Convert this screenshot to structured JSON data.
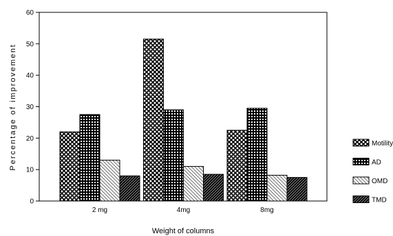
{
  "chart_data": {
    "type": "bar",
    "xlabel": "Weight of columns",
    "ylabel": "Percentage of improvement",
    "ylim": [
      0,
      60
    ],
    "yticks": [
      0,
      10,
      20,
      30,
      40,
      50,
      60
    ],
    "categories": [
      "2 mg",
      "4mg",
      "8mg"
    ],
    "series": [
      {
        "name": "Motility",
        "pattern": "crosshatch-diagonal",
        "values": [
          22,
          51.5,
          22.5
        ]
      },
      {
        "name": "AD",
        "pattern": "grid-dense",
        "values": [
          27.5,
          29,
          29.5
        ]
      },
      {
        "name": "OMD",
        "pattern": "hatch-light",
        "values": [
          13,
          11,
          8.2
        ]
      },
      {
        "name": "TMD",
        "pattern": "hatch-dark",
        "values": [
          8,
          8.5,
          7.5
        ]
      }
    ],
    "legend_position": "right",
    "grid": false
  }
}
